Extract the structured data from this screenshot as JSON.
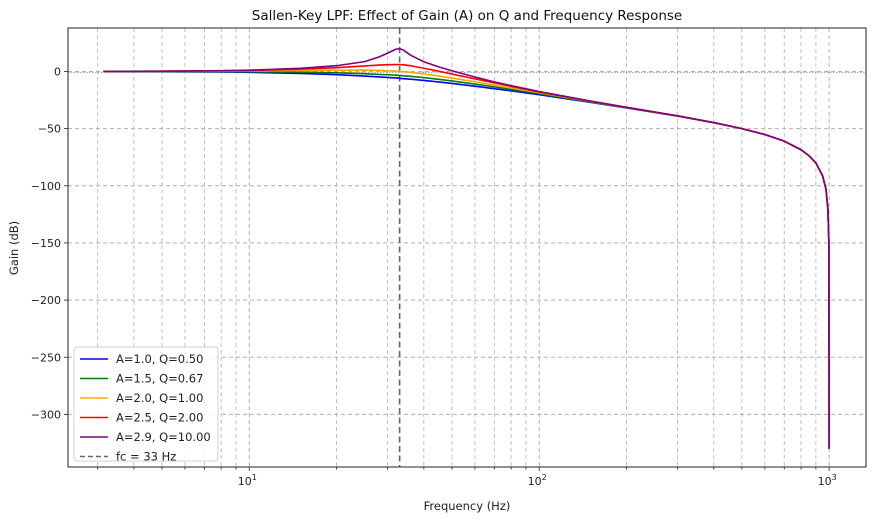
{
  "chart_data": {
    "type": "line",
    "title": "Sallen-Key LPF: Effect of Gain (A) on Q and Frequency Response",
    "xlabel": "Frequency (Hz)",
    "ylabel": "Gain (dB)",
    "xscale": "log",
    "xlim": [
      2.37,
      1340
    ],
    "ylim": [
      -346,
      38
    ],
    "xticks": [
      {
        "value": 10,
        "label_base": "10",
        "label_exp": "1"
      },
      {
        "value": 100,
        "label_base": "10",
        "label_exp": "2"
      },
      {
        "value": 1000,
        "label_base": "10",
        "label_exp": "3"
      }
    ],
    "yticks": [
      {
        "value": 0,
        "label": "0"
      },
      {
        "value": -50,
        "label": "−50"
      },
      {
        "value": -100,
        "label": "−100"
      },
      {
        "value": -150,
        "label": "−150"
      },
      {
        "value": -200,
        "label": "−200"
      },
      {
        "value": -250,
        "label": "−250"
      },
      {
        "value": -300,
        "label": "−300"
      }
    ],
    "grid": true,
    "legend_position": "lower-left",
    "reference_lines": {
      "zero_db": {
        "value": 0,
        "color": "#999999",
        "style": "dotted"
      },
      "cutoff": {
        "value": 33,
        "label": "fc = 33 Hz",
        "color": "#666666",
        "style": "dashed"
      }
    },
    "x": [
      3.14,
      5,
      8,
      10,
      15,
      20,
      25,
      28,
      30,
      32,
      33,
      34,
      36,
      40,
      45,
      50,
      60,
      70,
      80,
      100,
      150,
      200,
      300,
      400,
      500,
      600,
      700,
      800,
      850,
      900,
      950,
      975,
      990,
      998,
      1000
    ],
    "series": [
      {
        "name": "A=1.0, Q=0.50",
        "color": "#0000ff",
        "values": [
          -0.08,
          -0.2,
          -0.5,
          -0.78,
          -1.7,
          -2.8,
          -4.0,
          -4.8,
          -5.2,
          -5.7,
          -6.0,
          -6.3,
          -6.8,
          -7.9,
          -9.2,
          -10.5,
          -12.9,
          -15.1,
          -17.0,
          -20.4,
          -27.0,
          -31.9,
          -39.1,
          -44.8,
          -50.0,
          -55.2,
          -61.0,
          -68.5,
          -73.5,
          -80.0,
          -91.5,
          -103,
          -120,
          -150,
          -330
        ]
      },
      {
        "name": "A=1.5, Q=0.67",
        "color": "#008000",
        "values": [
          -0.0,
          -0.03,
          -0.1,
          -0.2,
          -0.6,
          -1.2,
          -2.0,
          -2.6,
          -2.9,
          -3.3,
          -3.5,
          -3.8,
          -4.3,
          -5.4,
          -6.9,
          -8.3,
          -11.0,
          -13.5,
          -15.7,
          -19.5,
          -26.7,
          -31.7,
          -39.0,
          -44.8,
          -50.0,
          -55.2,
          -61.0,
          -68.5,
          -73.5,
          -80.0,
          -91.5,
          -103,
          -120,
          -150,
          -330
        ]
      },
      {
        "name": "A=2.0, Q=1.00",
        "color": "#ffa500",
        "values": [
          0.04,
          0.1,
          0.25,
          0.4,
          0.8,
          1.1,
          1.2,
          0.9,
          0.6,
          0.2,
          0.0,
          -0.25,
          -0.8,
          -2.2,
          -4.0,
          -5.8,
          -9.0,
          -11.9,
          -14.4,
          -18.6,
          -26.3,
          -31.5,
          -38.9,
          -44.7,
          -50.0,
          -55.2,
          -61.0,
          -68.5,
          -73.5,
          -80.0,
          -91.5,
          -103,
          -120,
          -150,
          -330
        ]
      },
      {
        "name": "A=2.5, Q=2.00",
        "color": "#ff0000",
        "values": [
          0.08,
          0.2,
          0.55,
          0.9,
          2.0,
          3.3,
          4.8,
          5.6,
          5.9,
          6.0,
          6.0,
          5.8,
          5.0,
          2.8,
          0.2,
          -2.3,
          -6.5,
          -10.0,
          -13.0,
          -17.9,
          -26.0,
          -31.4,
          -38.9,
          -44.7,
          -50.0,
          -55.2,
          -61.0,
          -68.5,
          -73.5,
          -80.0,
          -91.5,
          -103,
          -120,
          -150,
          -330
        ]
      },
      {
        "name": "A=2.9, Q=10.00",
        "color": "#800080",
        "values": [
          0.1,
          0.25,
          0.7,
          1.1,
          2.7,
          5.0,
          8.6,
          12.6,
          16.0,
          19.4,
          20.0,
          18.7,
          14.2,
          8.5,
          4.0,
          0.6,
          -4.9,
          -9.1,
          -12.4,
          -17.6,
          -25.9,
          -31.3,
          -38.8,
          -44.7,
          -50.0,
          -55.2,
          -61.0,
          -68.5,
          -73.5,
          -80.0,
          -91.5,
          -103,
          -120,
          -150,
          -330
        ]
      }
    ],
    "legend": [
      {
        "label": "A=1.0, Q=0.50",
        "color": "#0000ff",
        "style": "solid"
      },
      {
        "label": "A=1.5, Q=0.67",
        "color": "#008000",
        "style": "solid"
      },
      {
        "label": "A=2.0, Q=1.00",
        "color": "#ffa500",
        "style": "solid"
      },
      {
        "label": "A=2.5, Q=2.00",
        "color": "#ff0000",
        "style": "solid"
      },
      {
        "label": "A=2.9, Q=10.00",
        "color": "#800080",
        "style": "solid"
      },
      {
        "label": "fc = 33 Hz",
        "color": "#666666",
        "style": "dashed"
      }
    ]
  }
}
